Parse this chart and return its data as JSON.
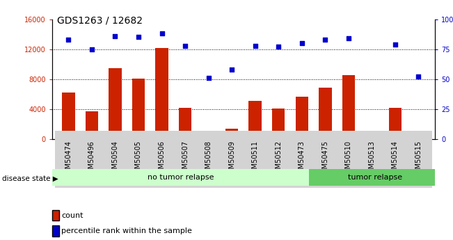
{
  "title": "GDS1263 / 12682",
  "categories": [
    "GSM50474",
    "GSM50496",
    "GSM50504",
    "GSM50505",
    "GSM50506",
    "GSM50507",
    "GSM50508",
    "GSM50509",
    "GSM50511",
    "GSM50512",
    "GSM50473",
    "GSM50475",
    "GSM50510",
    "GSM50513",
    "GSM50514",
    "GSM50515"
  ],
  "counts": [
    6200,
    3700,
    9500,
    8100,
    12200,
    4200,
    600,
    1400,
    5100,
    4100,
    5700,
    6900,
    8500,
    100,
    4200,
    700
  ],
  "percentiles": [
    83,
    75,
    86,
    85,
    88,
    78,
    51,
    58,
    78,
    77,
    80,
    83,
    84,
    -1,
    79,
    52
  ],
  "bar_color": "#cc2200",
  "dot_color": "#0000cc",
  "left_ylim": [
    0,
    16000
  ],
  "right_ylim": [
    0,
    100
  ],
  "left_yticks": [
    0,
    4000,
    8000,
    12000,
    16000
  ],
  "right_yticks": [
    0,
    25,
    50,
    75,
    100
  ],
  "right_yticklabels": [
    "0",
    "25",
    "50",
    "75",
    "100%"
  ],
  "grid_values": [
    4000,
    8000,
    12000
  ],
  "no_tumor_count": 11,
  "tumor_count": 5,
  "no_tumor_label": "no tumor relapse",
  "tumor_label": "tumor relapse",
  "disease_state_label": "disease state",
  "legend_count_label": "count",
  "legend_percentile_label": "percentile rank within the sample",
  "no_tumor_color": "#ccffcc",
  "tumor_color": "#66cc66",
  "label_bg_color": "#d3d3d3",
  "title_fontsize": 10,
  "tick_fontsize": 7
}
